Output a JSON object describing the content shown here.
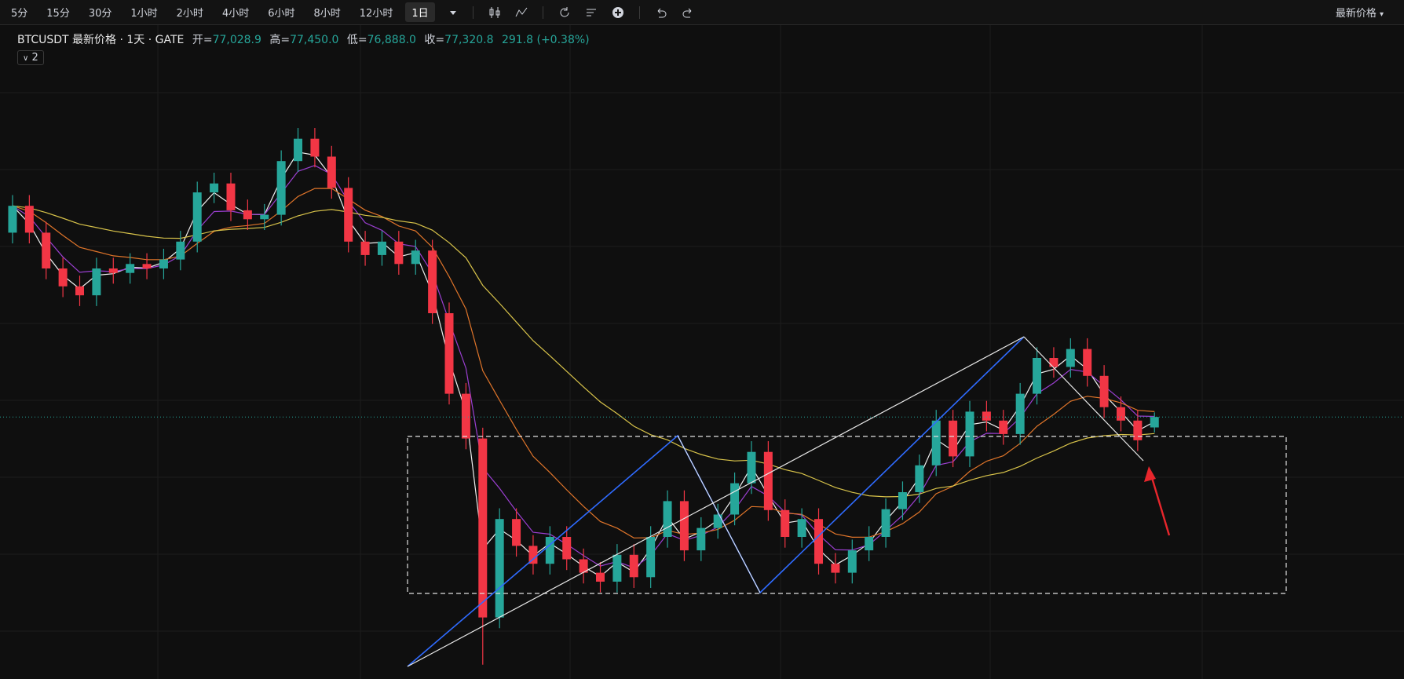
{
  "toolbar": {
    "intervals": [
      "5分",
      "15分",
      "30分",
      "1小时",
      "2小时",
      "4小时",
      "6小时",
      "8小时",
      "12小时",
      "1日"
    ],
    "selected": 9,
    "price_mode": "最新价格"
  },
  "header": {
    "symbol": "BTCUSDT 最新价格 · 1天 · GATE",
    "open_label": "开=",
    "open": "77,028.9",
    "high_label": "高=",
    "high": "77,450.0",
    "low_label": "低=",
    "low": "76,888.0",
    "close_label": "收=",
    "close": "77,320.8",
    "change": "291.8 (+0.38%)",
    "indicators": "2"
  },
  "chart_data": {
    "type": "candlestick",
    "up_color": "#26a69a",
    "down_color": "#f23645",
    "open": [
      82470,
      83220,
      82470,
      81470,
      80970,
      80720,
      81470,
      81345,
      81595,
      81470,
      81720,
      82220,
      83595,
      83845,
      83095,
      82845,
      82970,
      84470,
      85095,
      84595,
      83720,
      82220,
      81845,
      82220,
      81595,
      81970,
      80220,
      77970,
      76720,
      71720,
      74470,
      73720,
      73220,
      73970,
      73345,
      72970,
      72720,
      73470,
      72845,
      73970,
      74970,
      73595,
      74220,
      74595,
      75470,
      76345,
      74720,
      73970,
      74470,
      73220,
      72970,
      73595,
      73970,
      74745,
      75220,
      75970,
      77220,
      76220,
      77470,
      77220,
      76845,
      77970,
      78970,
      78720,
      79220,
      78470,
      77595,
      77220,
      77028.9
    ],
    "high": [
      83520,
      83520,
      82770,
      81770,
      81270,
      81770,
      81770,
      81895,
      81895,
      82020,
      82520,
      83895,
      84145,
      84145,
      83395,
      83270,
      84770,
      85395,
      85395,
      84895,
      84020,
      82520,
      82520,
      82520,
      82270,
      82270,
      80520,
      78270,
      77020,
      74770,
      74770,
      74020,
      74270,
      74270,
      73645,
      73270,
      73770,
      73770,
      74270,
      75270,
      75270,
      74520,
      74895,
      75770,
      76645,
      76645,
      75020,
      74770,
      74770,
      73520,
      73895,
      74270,
      75045,
      75520,
      76270,
      77520,
      77520,
      77770,
      77770,
      77520,
      78270,
      79270,
      79270,
      79520,
      79520,
      78770,
      77895,
      77520,
      77450
    ],
    "low": [
      82170,
      82170,
      81170,
      80670,
      80420,
      80420,
      81045,
      81045,
      81170,
      81170,
      81420,
      81920,
      83295,
      82795,
      82545,
      82545,
      82670,
      84170,
      84295,
      83420,
      81920,
      81545,
      81545,
      81295,
      81295,
      79920,
      77670,
      76420,
      70400,
      71420,
      73420,
      72920,
      72920,
      73045,
      72670,
      72420,
      72420,
      72545,
      72545,
      73670,
      73295,
      73295,
      73920,
      74295,
      75170,
      74420,
      73670,
      73670,
      72920,
      72670,
      72670,
      73295,
      73670,
      74445,
      74920,
      75670,
      75920,
      75920,
      76920,
      76545,
      76545,
      77670,
      78420,
      78420,
      78170,
      77295,
      76920,
      76370,
      76888
    ],
    "close": [
      83220,
      82470,
      81470,
      80970,
      80720,
      81470,
      81345,
      81595,
      81470,
      81720,
      82220,
      83595,
      83845,
      83095,
      82845,
      82970,
      84470,
      85095,
      84595,
      83720,
      82220,
      81845,
      82220,
      81595,
      81970,
      80220,
      77970,
      76720,
      71720,
      74470,
      73720,
      73220,
      73970,
      73345,
      72970,
      72720,
      73470,
      72845,
      73970,
      74970,
      73595,
      74220,
      74595,
      75470,
      76345,
      74720,
      73970,
      74470,
      73220,
      72970,
      73595,
      73970,
      74745,
      75220,
      75970,
      77220,
      76220,
      77470,
      77220,
      76845,
      77970,
      78970,
      78720,
      79220,
      78470,
      77595,
      77220,
      76670,
      77320.8
    ]
  }
}
